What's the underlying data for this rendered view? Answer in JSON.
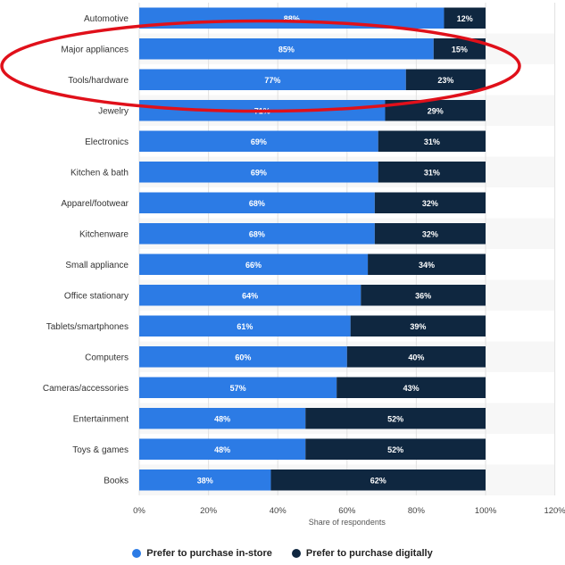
{
  "chart_data": {
    "type": "bar",
    "orientation": "horizontal",
    "stacked": true,
    "categories": [
      "Automotive",
      "Major appliances",
      "Tools/hardware",
      "Jewelry",
      "Electronics",
      "Kitchen & bath",
      "Apparel/footwear",
      "Kitchenware",
      "Small appliance",
      "Office stationary",
      "Tablets/smartphones",
      "Computers",
      "Cameras/accessories",
      "Entertainment",
      "Toys & games",
      "Books"
    ],
    "series": [
      {
        "name": "Prefer to purchase in-store",
        "color": "#2c7be5",
        "values": [
          88,
          85,
          77,
          71,
          69,
          69,
          68,
          68,
          66,
          64,
          61,
          60,
          57,
          48,
          48,
          38
        ],
        "labels": [
          "88%",
          "85%",
          "77%",
          "71%",
          "69%",
          "69%",
          "68%",
          "68%",
          "66%",
          "64%",
          "61%",
          "60%",
          "57%",
          "48%",
          "48%",
          "38%"
        ]
      },
      {
        "name": "Prefer to purchase digitally",
        "color": "#0f2740",
        "values": [
          12,
          15,
          23,
          29,
          31,
          31,
          32,
          32,
          34,
          36,
          39,
          40,
          43,
          52,
          52,
          62
        ],
        "labels": [
          "12%",
          "15%",
          "23%",
          "29%",
          "31%",
          "31%",
          "32%",
          "32%",
          "34%",
          "36%",
          "39%",
          "40%",
          "43%",
          "52%",
          "52%",
          "62%"
        ]
      }
    ],
    "xlabel": "Share of respondents",
    "xlim": [
      0,
      120
    ],
    "xticks": [
      "0%",
      "20%",
      "40%",
      "60%",
      "80%",
      "100%",
      "120%"
    ],
    "grid": true,
    "legend_position": "bottom",
    "annotation": {
      "shape": "ellipse",
      "color": "#e0101a",
      "highlights": [
        "Major appliances",
        "Tools/hardware"
      ]
    }
  }
}
